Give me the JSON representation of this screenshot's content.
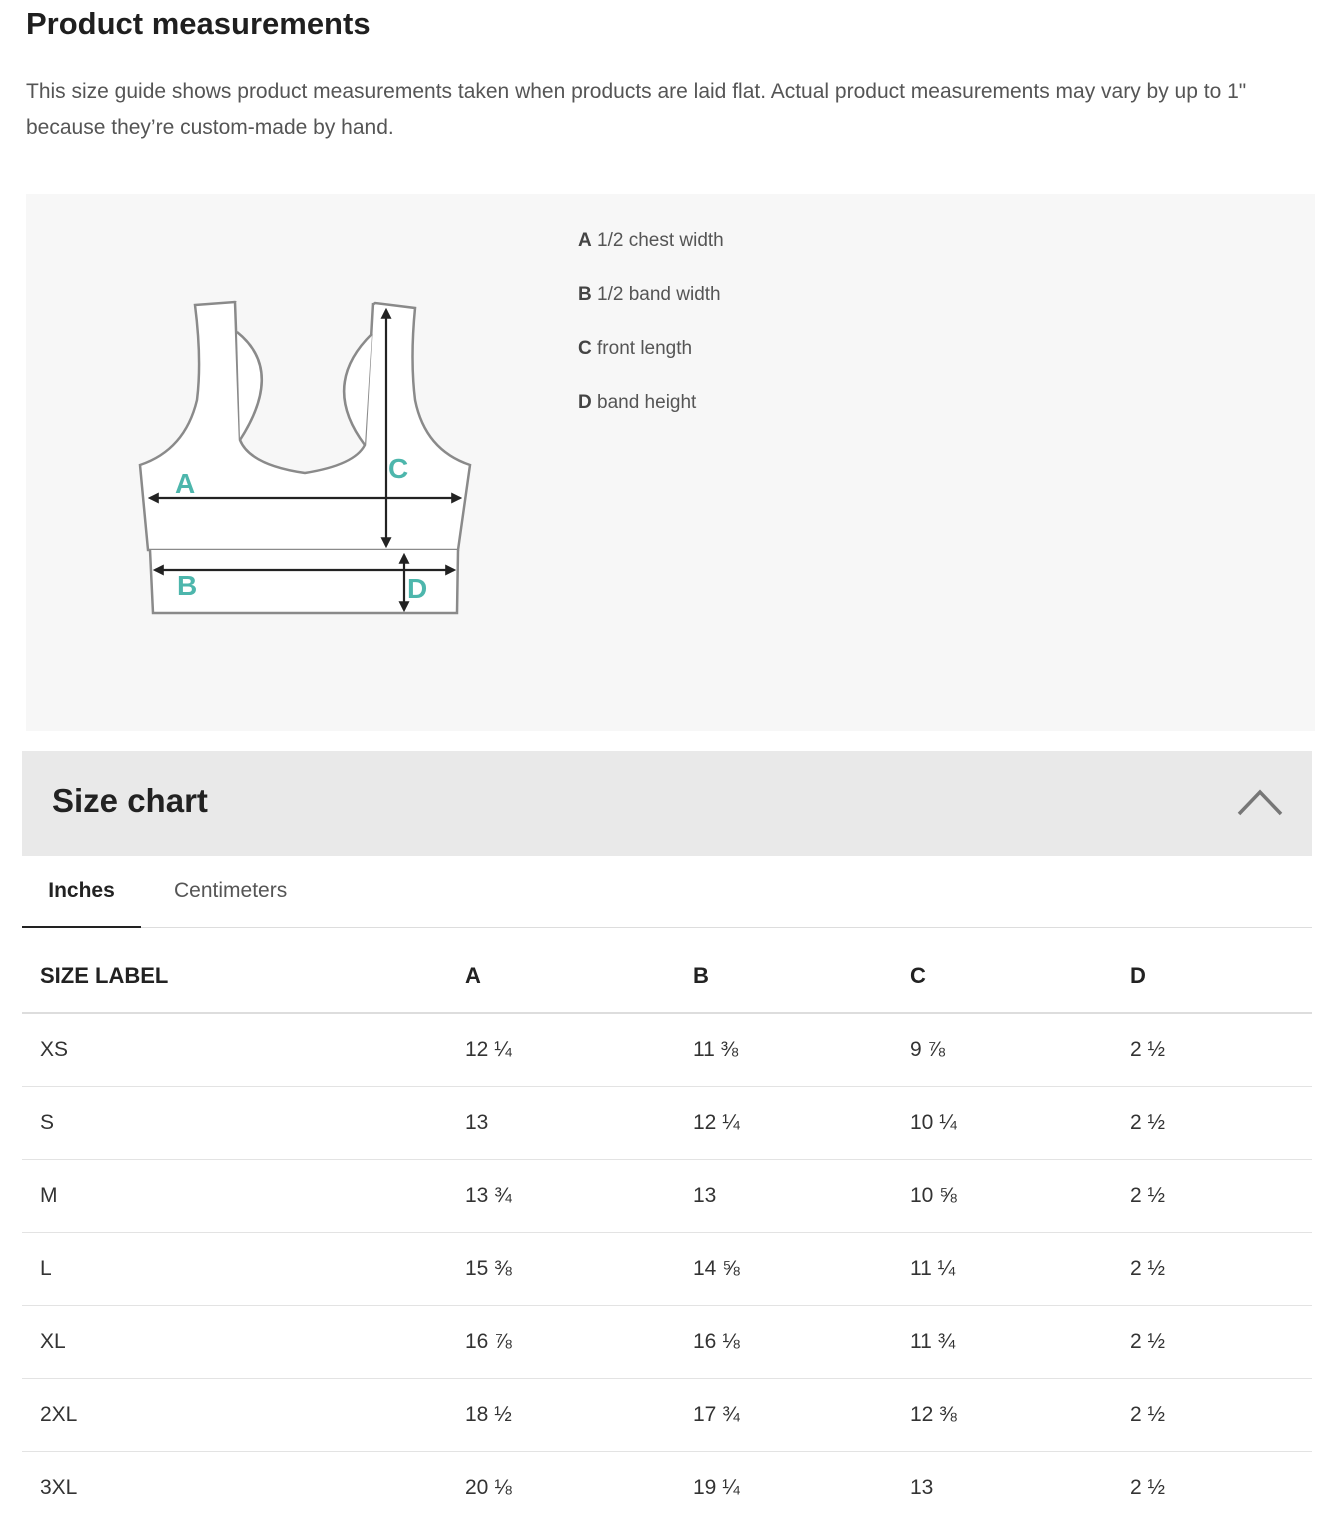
{
  "title": "Product measurements",
  "description": "This size guide shows product measurements taken when products are laid flat. Actual product measurements may vary by up to 1\" because they’re custom-made by hand.",
  "diagram": {
    "labels": [
      "A",
      "B",
      "C",
      "D"
    ],
    "label_color": "#4db6ac"
  },
  "legend": [
    {
      "key": "A",
      "text": "1/2 chest width"
    },
    {
      "key": "B",
      "text": "1/2 band width"
    },
    {
      "key": "C",
      "text": "front length"
    },
    {
      "key": "D",
      "text": "band height"
    }
  ],
  "size_chart": {
    "title": "Size chart",
    "toggle_icon": "chevron-up-icon",
    "tabs": [
      {
        "label": "Inches",
        "active": true
      },
      {
        "label": "Centimeters",
        "active": false
      }
    ],
    "columns": [
      "SIZE LABEL",
      "A",
      "B",
      "C",
      "D"
    ],
    "rows": [
      [
        "XS",
        "12 ¼",
        "11 ⅜",
        "9 ⅞",
        "2 ½"
      ],
      [
        "S",
        "13",
        "12 ¼",
        "10 ¼",
        "2 ½"
      ],
      [
        "M",
        "13 ¾",
        "13",
        "10 ⅝",
        "2 ½"
      ],
      [
        "L",
        "15 ⅜",
        "14 ⅝",
        "11 ¼",
        "2 ½"
      ],
      [
        "XL",
        "16 ⅞",
        "16 ⅛",
        "11 ¾",
        "2 ½"
      ],
      [
        "2XL",
        "18 ½",
        "17 ¾",
        "12 ⅜",
        "2 ½"
      ],
      [
        "3XL",
        "20 ⅛",
        "19 ¼",
        "13",
        "2 ½"
      ]
    ]
  }
}
